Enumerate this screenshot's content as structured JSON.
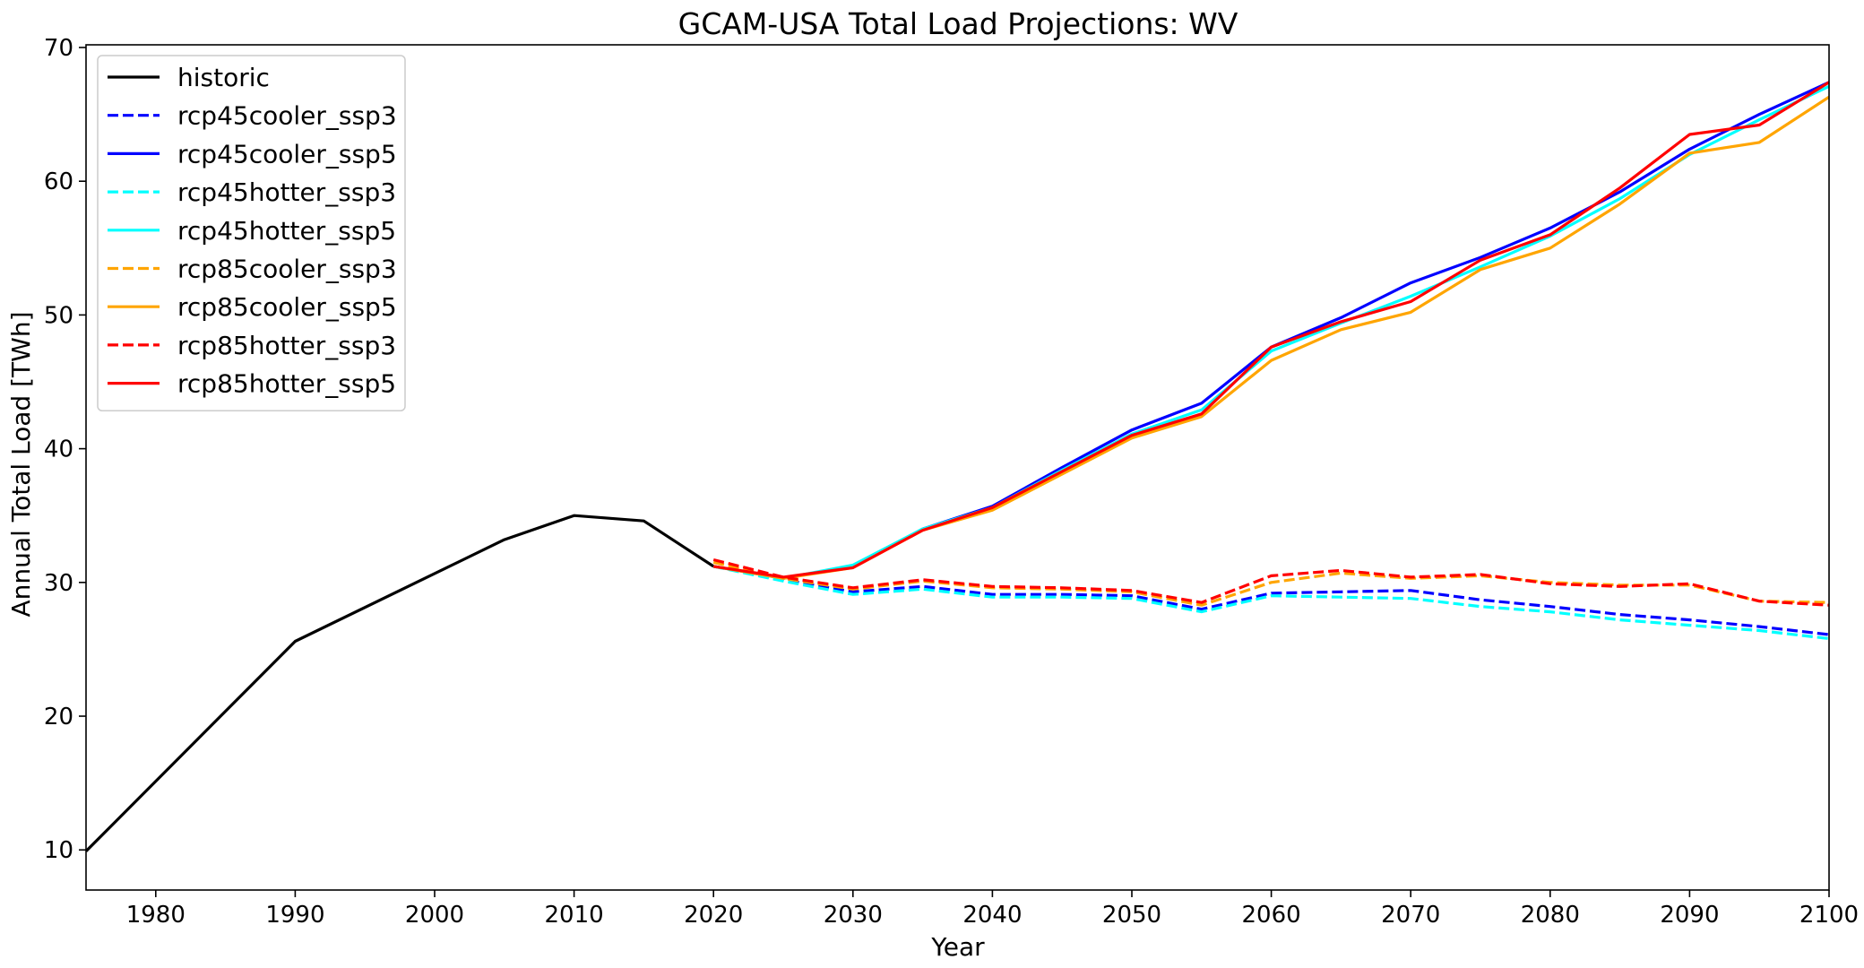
{
  "chart_data": {
    "type": "line",
    "title": "GCAM-USA Total Load Projections: WV",
    "xlabel": "Year",
    "ylabel": "Annual Total Load [TWh]",
    "xlim": [
      1975,
      2100
    ],
    "ylim": [
      7,
      70.2
    ],
    "xticks": [
      1980,
      1990,
      2000,
      2010,
      2020,
      2030,
      2040,
      2050,
      2060,
      2070,
      2080,
      2090,
      2100
    ],
    "yticks": [
      10,
      20,
      30,
      40,
      50,
      60,
      70
    ],
    "grid": false,
    "legend_position": "top-left",
    "series": [
      {
        "name": "historic",
        "color": "#000000",
        "dash": false,
        "x": [
          1975,
          1990,
          2005,
          2010,
          2015,
          2020
        ],
        "y": [
          9.9,
          25.6,
          33.2,
          35.0,
          34.6,
          31.2
        ]
      },
      {
        "name": "rcp45cooler_ssp3",
        "color": "#0000ff",
        "dash": true,
        "x": [
          2020,
          2025,
          2030,
          2035,
          2040,
          2045,
          2050,
          2055,
          2060,
          2065,
          2070,
          2075,
          2080,
          2085,
          2090,
          2095,
          2100
        ],
        "y": [
          31.2,
          30.2,
          29.3,
          29.7,
          29.1,
          29.1,
          29.0,
          28.0,
          29.2,
          29.3,
          29.4,
          28.7,
          28.2,
          27.6,
          27.2,
          26.7,
          26.1
        ]
      },
      {
        "name": "rcp45cooler_ssp5",
        "color": "#0000ff",
        "dash": false,
        "x": [
          2020,
          2025,
          2030,
          2035,
          2040,
          2045,
          2050,
          2055,
          2060,
          2065,
          2070,
          2075,
          2080,
          2085,
          2090,
          2095,
          2100
        ],
        "y": [
          31.2,
          30.3,
          31.2,
          34.0,
          35.7,
          38.6,
          41.4,
          43.4,
          47.6,
          49.8,
          52.4,
          54.3,
          56.5,
          59.2,
          62.4,
          65.0,
          67.4
        ]
      },
      {
        "name": "rcp45hotter_ssp3",
        "color": "#00ffff",
        "dash": true,
        "x": [
          2020,
          2025,
          2030,
          2035,
          2040,
          2045,
          2050,
          2055,
          2060,
          2065,
          2070,
          2075,
          2080,
          2085,
          2090,
          2095,
          2100
        ],
        "y": [
          31.2,
          30.1,
          29.1,
          29.5,
          28.9,
          28.9,
          28.8,
          27.8,
          29.0,
          28.9,
          28.8,
          28.2,
          27.8,
          27.2,
          26.8,
          26.4,
          25.8
        ]
      },
      {
        "name": "rcp45hotter_ssp5",
        "color": "#00ffff",
        "dash": false,
        "x": [
          2020,
          2025,
          2030,
          2035,
          2040,
          2045,
          2050,
          2055,
          2060,
          2065,
          2070,
          2075,
          2080,
          2085,
          2090,
          2095,
          2100
        ],
        "y": [
          31.2,
          30.3,
          31.3,
          34.0,
          35.6,
          38.4,
          41.1,
          42.9,
          47.3,
          49.4,
          51.4,
          53.6,
          55.9,
          58.7,
          62.0,
          64.6,
          67.1
        ]
      },
      {
        "name": "rcp85cooler_ssp3",
        "color": "#ffa500",
        "dash": true,
        "x": [
          2020,
          2025,
          2030,
          2035,
          2040,
          2045,
          2050,
          2055,
          2060,
          2065,
          2070,
          2075,
          2080,
          2085,
          2090,
          2095,
          2100
        ],
        "y": [
          31.5,
          30.3,
          29.5,
          30.1,
          29.6,
          29.5,
          29.3,
          28.3,
          30.0,
          30.7,
          30.3,
          30.5,
          30.0,
          29.8,
          29.8,
          28.6,
          28.5
        ]
      },
      {
        "name": "rcp85cooler_ssp5",
        "color": "#ffa500",
        "dash": false,
        "x": [
          2020,
          2025,
          2030,
          2035,
          2040,
          2045,
          2050,
          2055,
          2060,
          2065,
          2070,
          2075,
          2080,
          2085,
          2090,
          2095,
          2100
        ],
        "y": [
          31.2,
          30.3,
          31.1,
          33.9,
          35.4,
          38.1,
          40.8,
          42.4,
          46.6,
          48.9,
          50.2,
          53.4,
          55.0,
          58.3,
          62.1,
          62.9,
          66.3
        ]
      },
      {
        "name": "rcp85hotter_ssp3",
        "color": "#ff0000",
        "dash": true,
        "x": [
          2020,
          2025,
          2030,
          2035,
          2040,
          2045,
          2050,
          2055,
          2060,
          2065,
          2070,
          2075,
          2080,
          2085,
          2090,
          2095,
          2100
        ],
        "y": [
          31.7,
          30.4,
          29.6,
          30.2,
          29.7,
          29.6,
          29.4,
          28.5,
          30.5,
          30.9,
          30.4,
          30.6,
          29.9,
          29.7,
          29.9,
          28.6,
          28.3
        ]
      },
      {
        "name": "rcp85hotter_ssp5",
        "color": "#ff0000",
        "dash": false,
        "x": [
          2020,
          2025,
          2030,
          2035,
          2040,
          2045,
          2050,
          2055,
          2060,
          2065,
          2070,
          2075,
          2080,
          2085,
          2090,
          2095,
          2100
        ],
        "y": [
          31.2,
          30.4,
          31.1,
          33.9,
          35.6,
          38.3,
          41.0,
          42.6,
          47.6,
          49.5,
          51.0,
          54.1,
          56.0,
          59.5,
          63.5,
          64.2,
          67.4
        ]
      }
    ]
  }
}
